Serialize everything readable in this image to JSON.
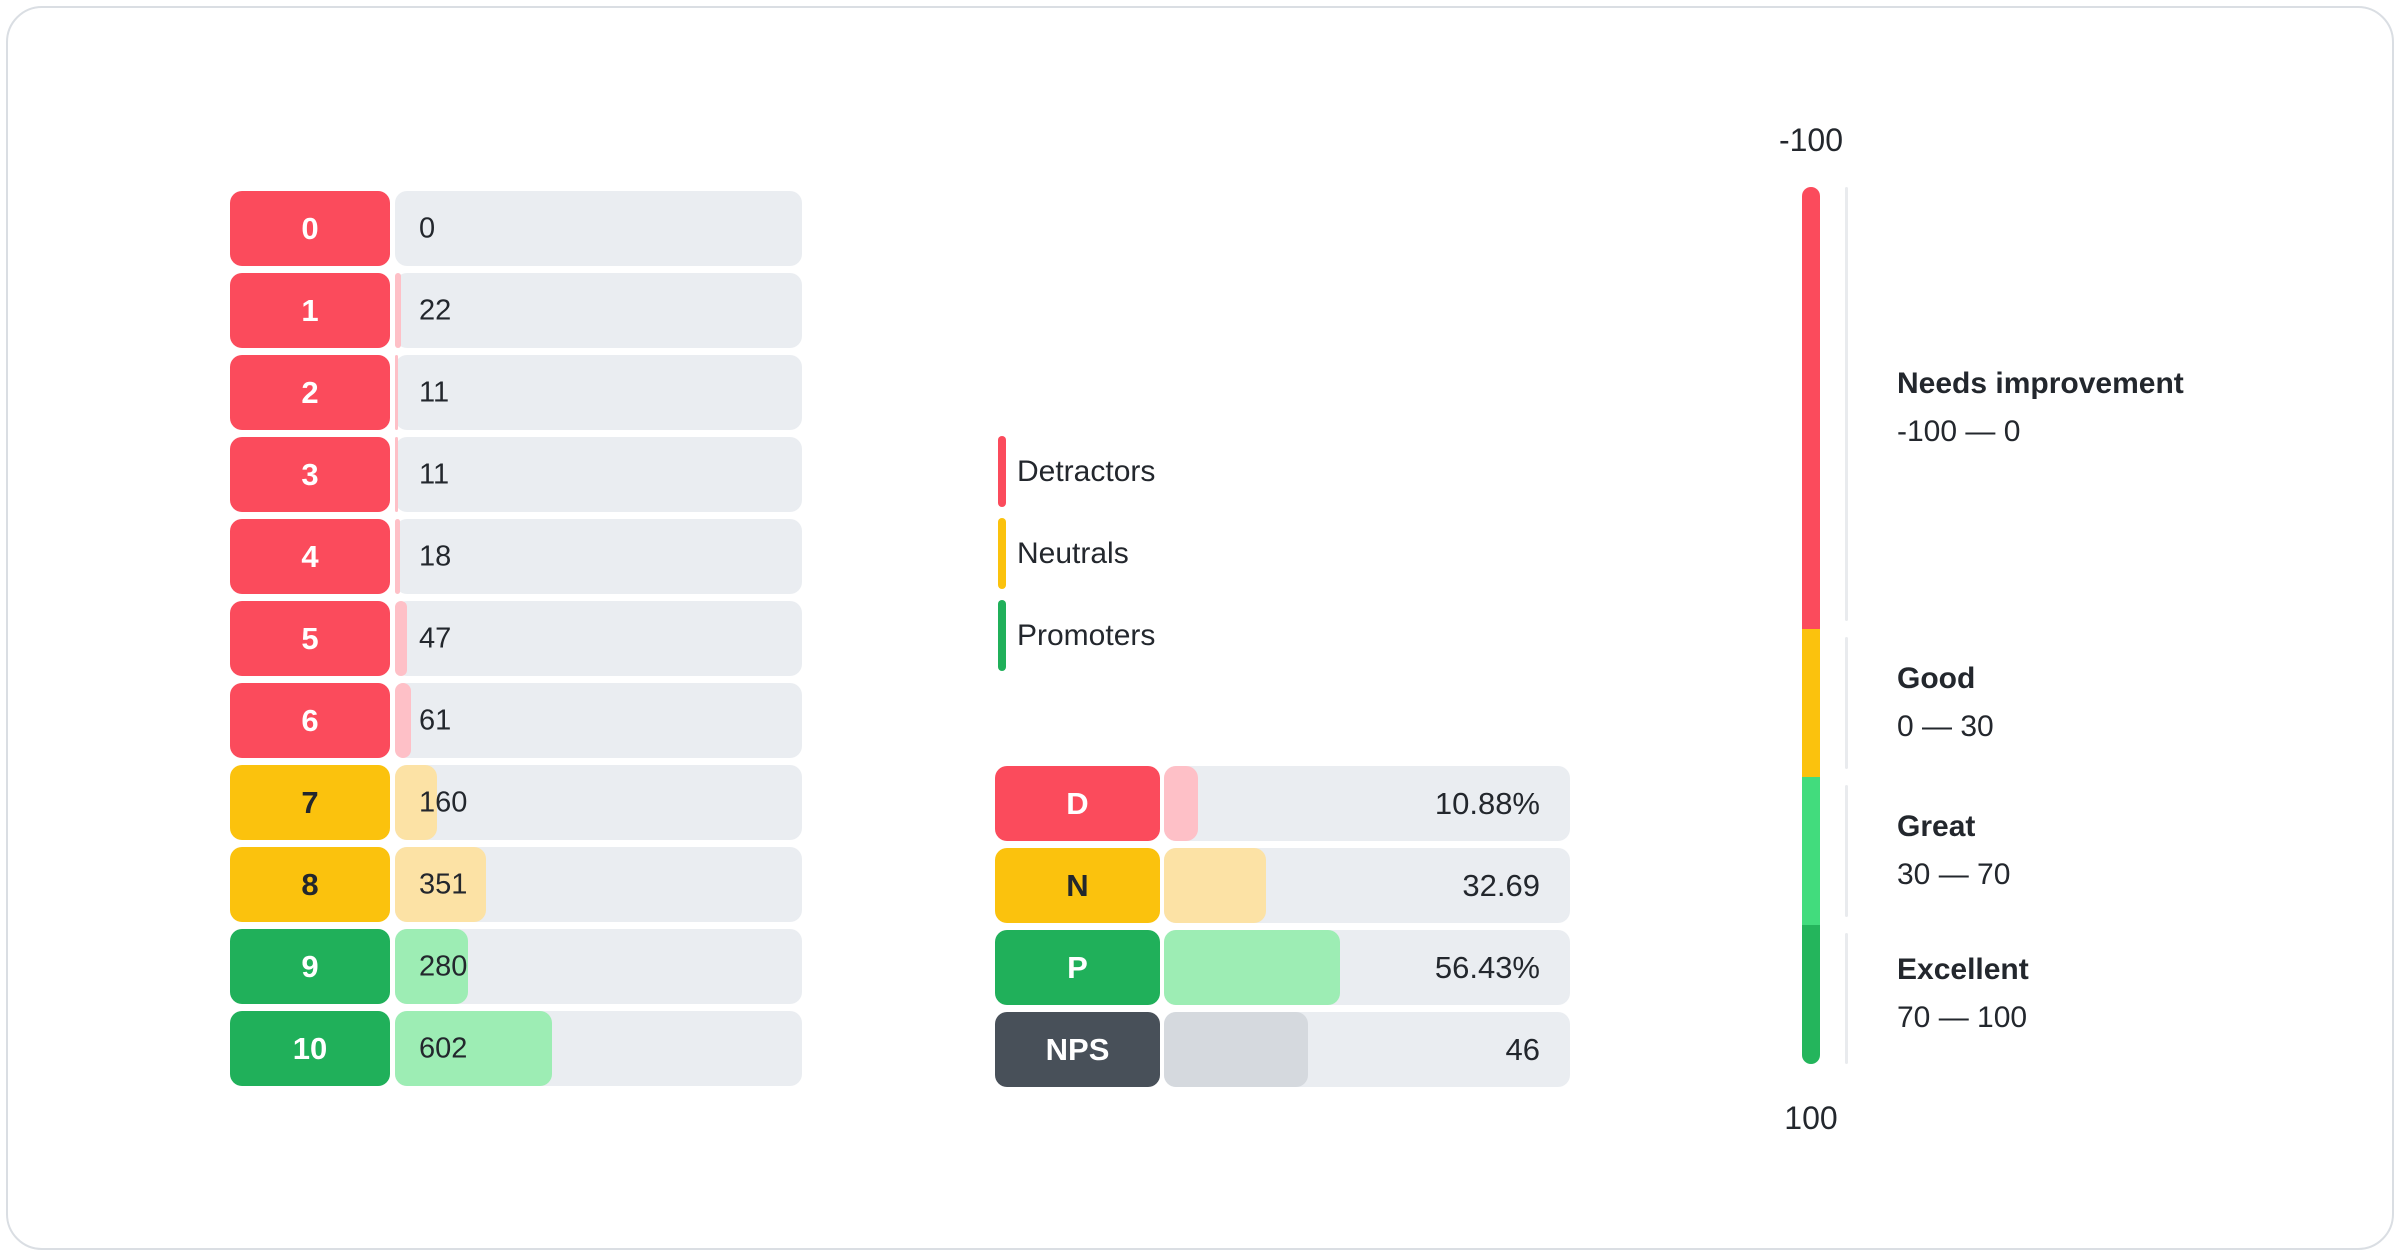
{
  "colors": {
    "detractor": "#FB4B5C",
    "detractor_light": "#FEC0C7",
    "neutral": "#FBC20D",
    "neutral_light": "#FCE2A5",
    "promoter": "#20B05A",
    "promoter_light": "#9DEDB4",
    "gauge_great": "#42DC7D",
    "gauge_excellent": "#24B55C",
    "nps": "#485059",
    "nps_light": "#D5D9DE",
    "track": "#EAEDF1",
    "text_dark": "#23272D",
    "text_on_chip": "#FFFFFF"
  },
  "legend": {
    "items": [
      {
        "label": "Detractors",
        "color_key": "detractor"
      },
      {
        "label": "Neutrals",
        "color_key": "neutral"
      },
      {
        "label": "Promoters",
        "color_key": "promoter"
      }
    ]
  },
  "chart_data": [
    {
      "type": "bar",
      "name": "score-distribution",
      "categories": [
        "0",
        "1",
        "2",
        "3",
        "4",
        "5",
        "6",
        "7",
        "8",
        "9",
        "10"
      ],
      "values": [
        0,
        22,
        11,
        11,
        18,
        47,
        61,
        160,
        351,
        280,
        602
      ],
      "groups": [
        "detractor",
        "detractor",
        "detractor",
        "detractor",
        "detractor",
        "detractor",
        "detractor",
        "neutral",
        "neutral",
        "promoter",
        "promoter"
      ],
      "xlabel": "",
      "ylabel": ""
    },
    {
      "type": "bar",
      "name": "nps-summary",
      "categories": [
        "D",
        "N",
        "P",
        "NPS"
      ],
      "values": [
        10.88,
        32.69,
        56.43,
        46
      ],
      "display_values": [
        "10.88%",
        "32.69",
        "56.43%",
        "46"
      ],
      "color_keys": [
        "detractor",
        "neutral",
        "promoter",
        "nps"
      ]
    },
    {
      "type": "gauge",
      "name": "nps-scale",
      "axis": {
        "min": -100,
        "max": 100,
        "top_label": "-100",
        "bottom_label": "100"
      },
      "zones": [
        {
          "name": "Needs improvement",
          "range": "-100 — 0",
          "min": -100,
          "max": 0,
          "color_key": "detractor"
        },
        {
          "name": "Good",
          "range": "0 — 30",
          "min": 0,
          "max": 30,
          "color_key": "neutral"
        },
        {
          "name": "Great",
          "range": "30 — 70",
          "min": 30,
          "max": 70,
          "color_key": "gauge_great"
        },
        {
          "name": "Excellent",
          "range": "70 — 100",
          "min": 70,
          "max": 100,
          "color_key": "gauge_excellent"
        }
      ]
    }
  ]
}
